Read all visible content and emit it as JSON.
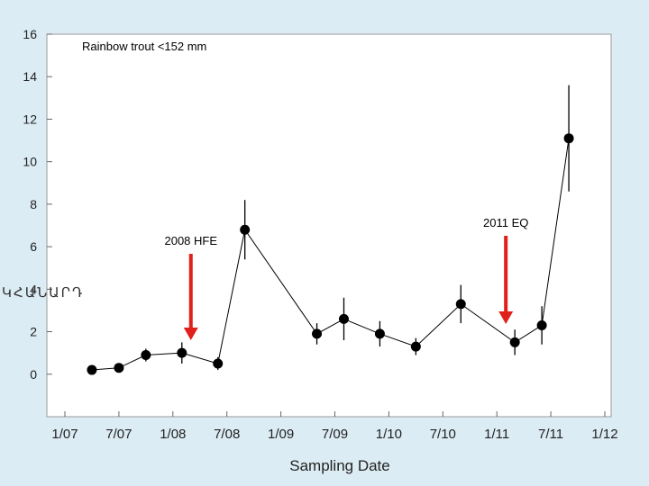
{
  "chart_data": {
    "type": "line",
    "annotation_title": "Rainbow trout <152 mm",
    "xlabel": "Sampling Date",
    "ylabel_fragment": "ԿՀԱՆԱՐԴ",
    "x_tick_labels": [
      "1/07",
      "7/07",
      "1/08",
      "7/08",
      "1/09",
      "7/09",
      "1/10",
      "7/10",
      "1/11",
      "7/11",
      "1/12"
    ],
    "y_ticks": [
      0,
      2,
      4,
      6,
      8,
      10,
      12,
      14,
      16
    ],
    "xlim": [
      "2007-01",
      "2012-01"
    ],
    "ylim": [
      -2,
      16
    ],
    "grid": false,
    "marker": "filled-circle",
    "error_bars": true,
    "series": [
      {
        "x": [
          "2007-04",
          "2007-07",
          "2007-10",
          "2008-02",
          "2008-06",
          "2008-09",
          "2009-05",
          "2009-08",
          "2009-12",
          "2010-04",
          "2010-09",
          "2011-03",
          "2011-06",
          "2011-09"
        ],
        "y": [
          0.2,
          0.3,
          0.9,
          1.0,
          0.5,
          6.8,
          1.9,
          2.6,
          1.9,
          1.3,
          3.3,
          1.5,
          2.3,
          11.1
        ],
        "err": [
          0.2,
          0.2,
          0.3,
          0.5,
          0.3,
          1.4,
          0.5,
          1.0,
          0.6,
          0.4,
          0.9,
          0.6,
          0.9,
          2.5
        ]
      }
    ],
    "annotations": [
      {
        "label": "2008 HFE",
        "x": "2008-03",
        "arrow_color": "#e0201b"
      },
      {
        "label": "2011 EQ",
        "x": "2011-02",
        "arrow_color": "#e0201b"
      }
    ],
    "colors": {
      "background": "#dcecf4",
      "plot_background": "#ffffff",
      "line": "#000000",
      "arrow": "#e0201b"
    }
  }
}
